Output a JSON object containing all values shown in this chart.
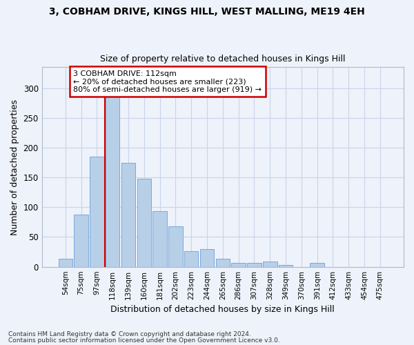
{
  "title1": "3, COBHAM DRIVE, KINGS HILL, WEST MALLING, ME19 4EH",
  "title2": "Size of property relative to detached houses in Kings Hill",
  "xlabel": "Distribution of detached houses by size in Kings Hill",
  "ylabel": "Number of detached properties",
  "footnote1": "Contains HM Land Registry data © Crown copyright and database right 2024.",
  "footnote2": "Contains public sector information licensed under the Open Government Licence v3.0.",
  "bin_labels": [
    "54sqm",
    "75sqm",
    "97sqm",
    "118sqm",
    "139sqm",
    "160sqm",
    "181sqm",
    "202sqm",
    "223sqm",
    "244sqm",
    "265sqm",
    "286sqm",
    "307sqm",
    "328sqm",
    "349sqm",
    "370sqm",
    "391sqm",
    "412sqm",
    "433sqm",
    "454sqm",
    "475sqm"
  ],
  "bar_heights": [
    13,
    88,
    185,
    290,
    175,
    148,
    93,
    68,
    26,
    30,
    14,
    6,
    7,
    9,
    3,
    0,
    6,
    0,
    0,
    0,
    0
  ],
  "bar_color": "#b8cfe8",
  "bar_edge_color": "#6a9fd8",
  "grid_color": "#c8d4e8",
  "bg_color": "#eef2fa",
  "annotation_text": "3 COBHAM DRIVE: 112sqm\n← 20% of detached houses are smaller (223)\n80% of semi-detached houses are larger (919) →",
  "annotation_box_color": "#ffffff",
  "annotation_box_edge": "#cc0000",
  "vline_color": "#cc0000",
  "vline_index": 3.0,
  "ylim": [
    0,
    335
  ],
  "yticks": [
    0,
    50,
    100,
    150,
    200,
    250,
    300
  ]
}
